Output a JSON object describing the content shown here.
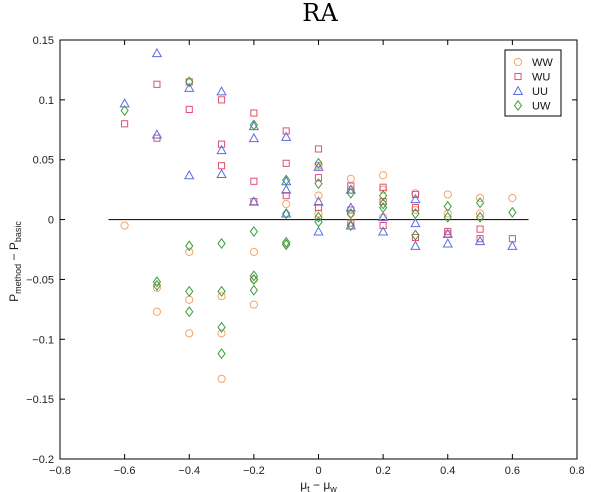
{
  "chart_data": {
    "type": "scatter",
    "title": "RA",
    "xlabel": {
      "base": "μ",
      "sub1": "t",
      "mid": " − μ",
      "sub2": "w"
    },
    "ylabel": {
      "base": "P",
      "sub1": "method",
      "mid": " − P",
      "sub2": "basic"
    },
    "xlim": [
      -0.8,
      0.8
    ],
    "ylim": [
      -0.2,
      0.15
    ],
    "xticks": [
      -0.8,
      -0.6,
      -0.4,
      -0.2,
      0,
      0.2,
      0.4,
      0.6,
      0.8
    ],
    "xtick_labels": [
      "−0.8",
      "−0.6",
      "−0.4",
      "−0.2",
      "0",
      "0.2",
      "0.4",
      "0.6",
      "0.8"
    ],
    "yticks": [
      -0.2,
      -0.15,
      -0.1,
      -0.05,
      0,
      0.05,
      0.1,
      0.15
    ],
    "ytick_labels": [
      "−0.2",
      "−0.15",
      "−0.1",
      "−0.05",
      "0",
      "0.05",
      "0.1",
      "0.15"
    ],
    "grid": false,
    "legend_position": "top-right",
    "reference_line": {
      "y": 0,
      "x_from": -0.65,
      "x_to": 0.65,
      "color": "#000000"
    },
    "series": [
      {
        "name": "WW",
        "marker": "circle",
        "color": "#f4a46a",
        "x": [
          -0.6,
          -0.5,
          -0.5,
          -0.4,
          -0.4,
          -0.4,
          -0.3,
          -0.3,
          -0.3,
          -0.2,
          -0.2,
          -0.2,
          -0.1,
          -0.1,
          0,
          0,
          0,
          0.1,
          0.1,
          0.1,
          0.2,
          0.2,
          0.2,
          0.3,
          0.3,
          0.4,
          0.4,
          0.5,
          0.5,
          0.6
        ],
        "y": [
          -0.005,
          -0.057,
          -0.077,
          -0.027,
          -0.067,
          -0.095,
          -0.064,
          -0.095,
          -0.133,
          -0.027,
          -0.05,
          -0.071,
          -0.02,
          0.013,
          0.005,
          0.02,
          0.045,
          0.034,
          0.025,
          0.005,
          0.037,
          0.025,
          0.002,
          0.022,
          0.008,
          0.021,
          0.005,
          0.018,
          0.005,
          0.018
        ]
      },
      {
        "name": "WU",
        "marker": "square",
        "color": "#e0506e",
        "x": [
          -0.6,
          -0.5,
          -0.5,
          -0.4,
          -0.4,
          -0.3,
          -0.3,
          -0.3,
          -0.2,
          -0.2,
          -0.2,
          -0.1,
          -0.1,
          -0.1,
          0,
          0,
          0,
          0.1,
          0.1,
          0.1,
          0.2,
          0.2,
          0.2,
          0.3,
          0.3,
          0.3,
          0.4,
          0.4,
          0.5,
          0.5,
          0.6
        ],
        "y": [
          0.08,
          0.113,
          0.068,
          0.092,
          0.115,
          0.1,
          0.063,
          0.045,
          0.089,
          0.032,
          0.015,
          0.074,
          0.047,
          0.02,
          0.059,
          0.035,
          0.01,
          0.028,
          0.008,
          -0.003,
          0.027,
          0.015,
          -0.005,
          0.021,
          0.01,
          -0.015,
          -0.01,
          -0.012,
          -0.008,
          -0.016,
          -0.016
        ]
      },
      {
        "name": "UU",
        "marker": "triangle",
        "color": "#5a6ee0",
        "x": [
          -0.6,
          -0.5,
          -0.5,
          -0.4,
          -0.4,
          -0.3,
          -0.3,
          -0.3,
          -0.2,
          -0.2,
          -0.2,
          -0.1,
          -0.1,
          -0.1,
          -0.1,
          0,
          0,
          0,
          0.1,
          0.1,
          0.1,
          0.2,
          0.2,
          0.3,
          0.3,
          0.3,
          0.4,
          0.4,
          0.5,
          0.6
        ],
        "y": [
          0.097,
          0.139,
          0.071,
          0.11,
          0.037,
          0.107,
          0.058,
          0.038,
          0.078,
          0.068,
          0.015,
          0.069,
          0.032,
          0.025,
          0.005,
          0.044,
          0.015,
          -0.01,
          0.01,
          -0.005,
          0.025,
          0.002,
          -0.01,
          -0.022,
          -0.003,
          0.017,
          -0.02,
          -0.012,
          -0.018,
          -0.022
        ]
      },
      {
        "name": "UW",
        "marker": "diamond",
        "color": "#3f9a3f",
        "x": [
          -0.6,
          -0.5,
          -0.5,
          -0.4,
          -0.4,
          -0.4,
          -0.4,
          -0.3,
          -0.3,
          -0.3,
          -0.3,
          -0.2,
          -0.2,
          -0.2,
          -0.2,
          -0.2,
          -0.1,
          -0.1,
          -0.1,
          -0.1,
          0,
          0,
          0,
          0,
          0.1,
          0.1,
          0.1,
          0.2,
          0.2,
          0.2,
          0.3,
          0.3,
          0.4,
          0.4,
          0.5,
          0.5,
          0.6
        ],
        "y": [
          0.091,
          -0.052,
          -0.055,
          0.115,
          -0.022,
          -0.06,
          -0.077,
          -0.02,
          -0.06,
          -0.09,
          -0.112,
          0.079,
          -0.01,
          -0.047,
          -0.05,
          -0.059,
          0.033,
          0.005,
          -0.019,
          -0.021,
          0.047,
          0.03,
          0.002,
          -0.002,
          0.022,
          0.005,
          -0.005,
          0.02,
          0.013,
          0.01,
          0.005,
          -0.013,
          0.011,
          0.002,
          0.014,
          0.002,
          0.006
        ]
      }
    ]
  }
}
